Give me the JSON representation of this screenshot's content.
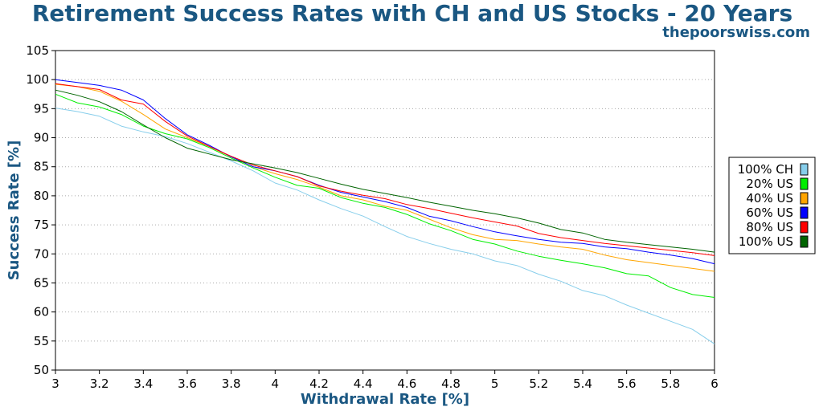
{
  "chart_data": {
    "type": "line",
    "title": "Retirement Success Rates with CH and US Stocks - 20 Years",
    "subtitle": "thepoorswiss.com",
    "xlabel": "Withdrawal Rate [%]",
    "ylabel": "Success Rate [%]",
    "xlim": [
      3,
      6
    ],
    "ylim": [
      50,
      105
    ],
    "x_ticks": [
      "3",
      "3.2",
      "3.4",
      "3.6",
      "3.8",
      "4",
      "4.2",
      "4.4",
      "4.6",
      "4.8",
      "5",
      "5.2",
      "5.4",
      "5.6",
      "5.8",
      "6"
    ],
    "y_ticks": [
      "50",
      "55",
      "60",
      "65",
      "70",
      "75",
      "80",
      "85",
      "90",
      "95",
      "100",
      "105"
    ],
    "grid": "horizontal-dotted",
    "legend_position": "right",
    "x": [
      3.0,
      3.1,
      3.2,
      3.3,
      3.4,
      3.5,
      3.6,
      3.7,
      3.8,
      3.9,
      4.0,
      4.1,
      4.2,
      4.3,
      4.4,
      4.5,
      4.6,
      4.7,
      4.8,
      4.9,
      5.0,
      5.1,
      5.2,
      5.3,
      5.4,
      5.5,
      5.6,
      5.7,
      5.8,
      5.9,
      6.0
    ],
    "series": [
      {
        "name": "100% CH",
        "color": "#87ceeb",
        "values": [
          95.1,
          94.5,
          93.7,
          92.0,
          91.0,
          90.2,
          89.0,
          87.5,
          86.0,
          84.3,
          82.2,
          81.0,
          79.3,
          77.8,
          76.5,
          74.7,
          73.0,
          71.8,
          70.8,
          70.0,
          68.8,
          68.0,
          66.5,
          65.3,
          63.7,
          62.8,
          61.2,
          59.8,
          58.4,
          57.0,
          54.5
        ]
      },
      {
        "name": "20% US",
        "color": "#00ee00",
        "values": [
          97.5,
          96.0,
          95.3,
          94.0,
          92.0,
          90.7,
          89.8,
          88.3,
          86.5,
          84.8,
          83.2,
          81.8,
          81.3,
          79.7,
          78.7,
          78.0,
          76.8,
          75.2,
          74.0,
          72.5,
          71.7,
          70.5,
          69.6,
          68.9,
          68.3,
          67.6,
          66.6,
          66.2,
          64.2,
          63.0,
          62.5
        ]
      },
      {
        "name": "40% US",
        "color": "#ffa500",
        "values": [
          99.2,
          98.8,
          98.0,
          96.3,
          94.0,
          91.5,
          90.0,
          88.5,
          86.7,
          85.0,
          83.8,
          82.8,
          81.5,
          80.0,
          79.3,
          78.2,
          77.5,
          76.0,
          74.5,
          73.3,
          72.5,
          72.3,
          71.7,
          71.2,
          70.8,
          69.8,
          69.0,
          68.5,
          68.0,
          67.5,
          67.0
        ]
      },
      {
        "name": "60% US",
        "color": "#0000ff",
        "values": [
          100.0,
          99.5,
          99.0,
          98.2,
          96.5,
          93.3,
          90.5,
          88.7,
          86.7,
          85.0,
          84.3,
          83.3,
          81.8,
          80.6,
          79.8,
          79.0,
          78.0,
          76.5,
          75.7,
          74.7,
          73.8,
          73.1,
          72.5,
          72.0,
          71.8,
          71.2,
          70.9,
          70.3,
          69.8,
          69.2,
          68.3
        ]
      },
      {
        "name": "80% US",
        "color": "#ff0000",
        "values": [
          99.3,
          98.8,
          98.3,
          96.5,
          95.8,
          92.8,
          90.3,
          88.5,
          86.8,
          85.3,
          84.3,
          83.3,
          81.7,
          80.8,
          80.1,
          79.5,
          78.5,
          77.8,
          77.0,
          76.2,
          75.5,
          74.8,
          73.5,
          72.8,
          72.3,
          71.8,
          71.4,
          71.0,
          70.6,
          70.2,
          69.7
        ]
      },
      {
        "name": "100% US",
        "color": "#006400",
        "values": [
          98.2,
          97.3,
          96.2,
          94.5,
          92.2,
          90.0,
          88.2,
          87.2,
          86.2,
          85.5,
          84.8,
          84.0,
          83.0,
          82.0,
          81.1,
          80.4,
          79.7,
          78.9,
          78.2,
          77.5,
          76.9,
          76.2,
          75.3,
          74.2,
          73.6,
          72.5,
          72.0,
          71.6,
          71.2,
          70.8,
          70.3
        ]
      }
    ]
  }
}
